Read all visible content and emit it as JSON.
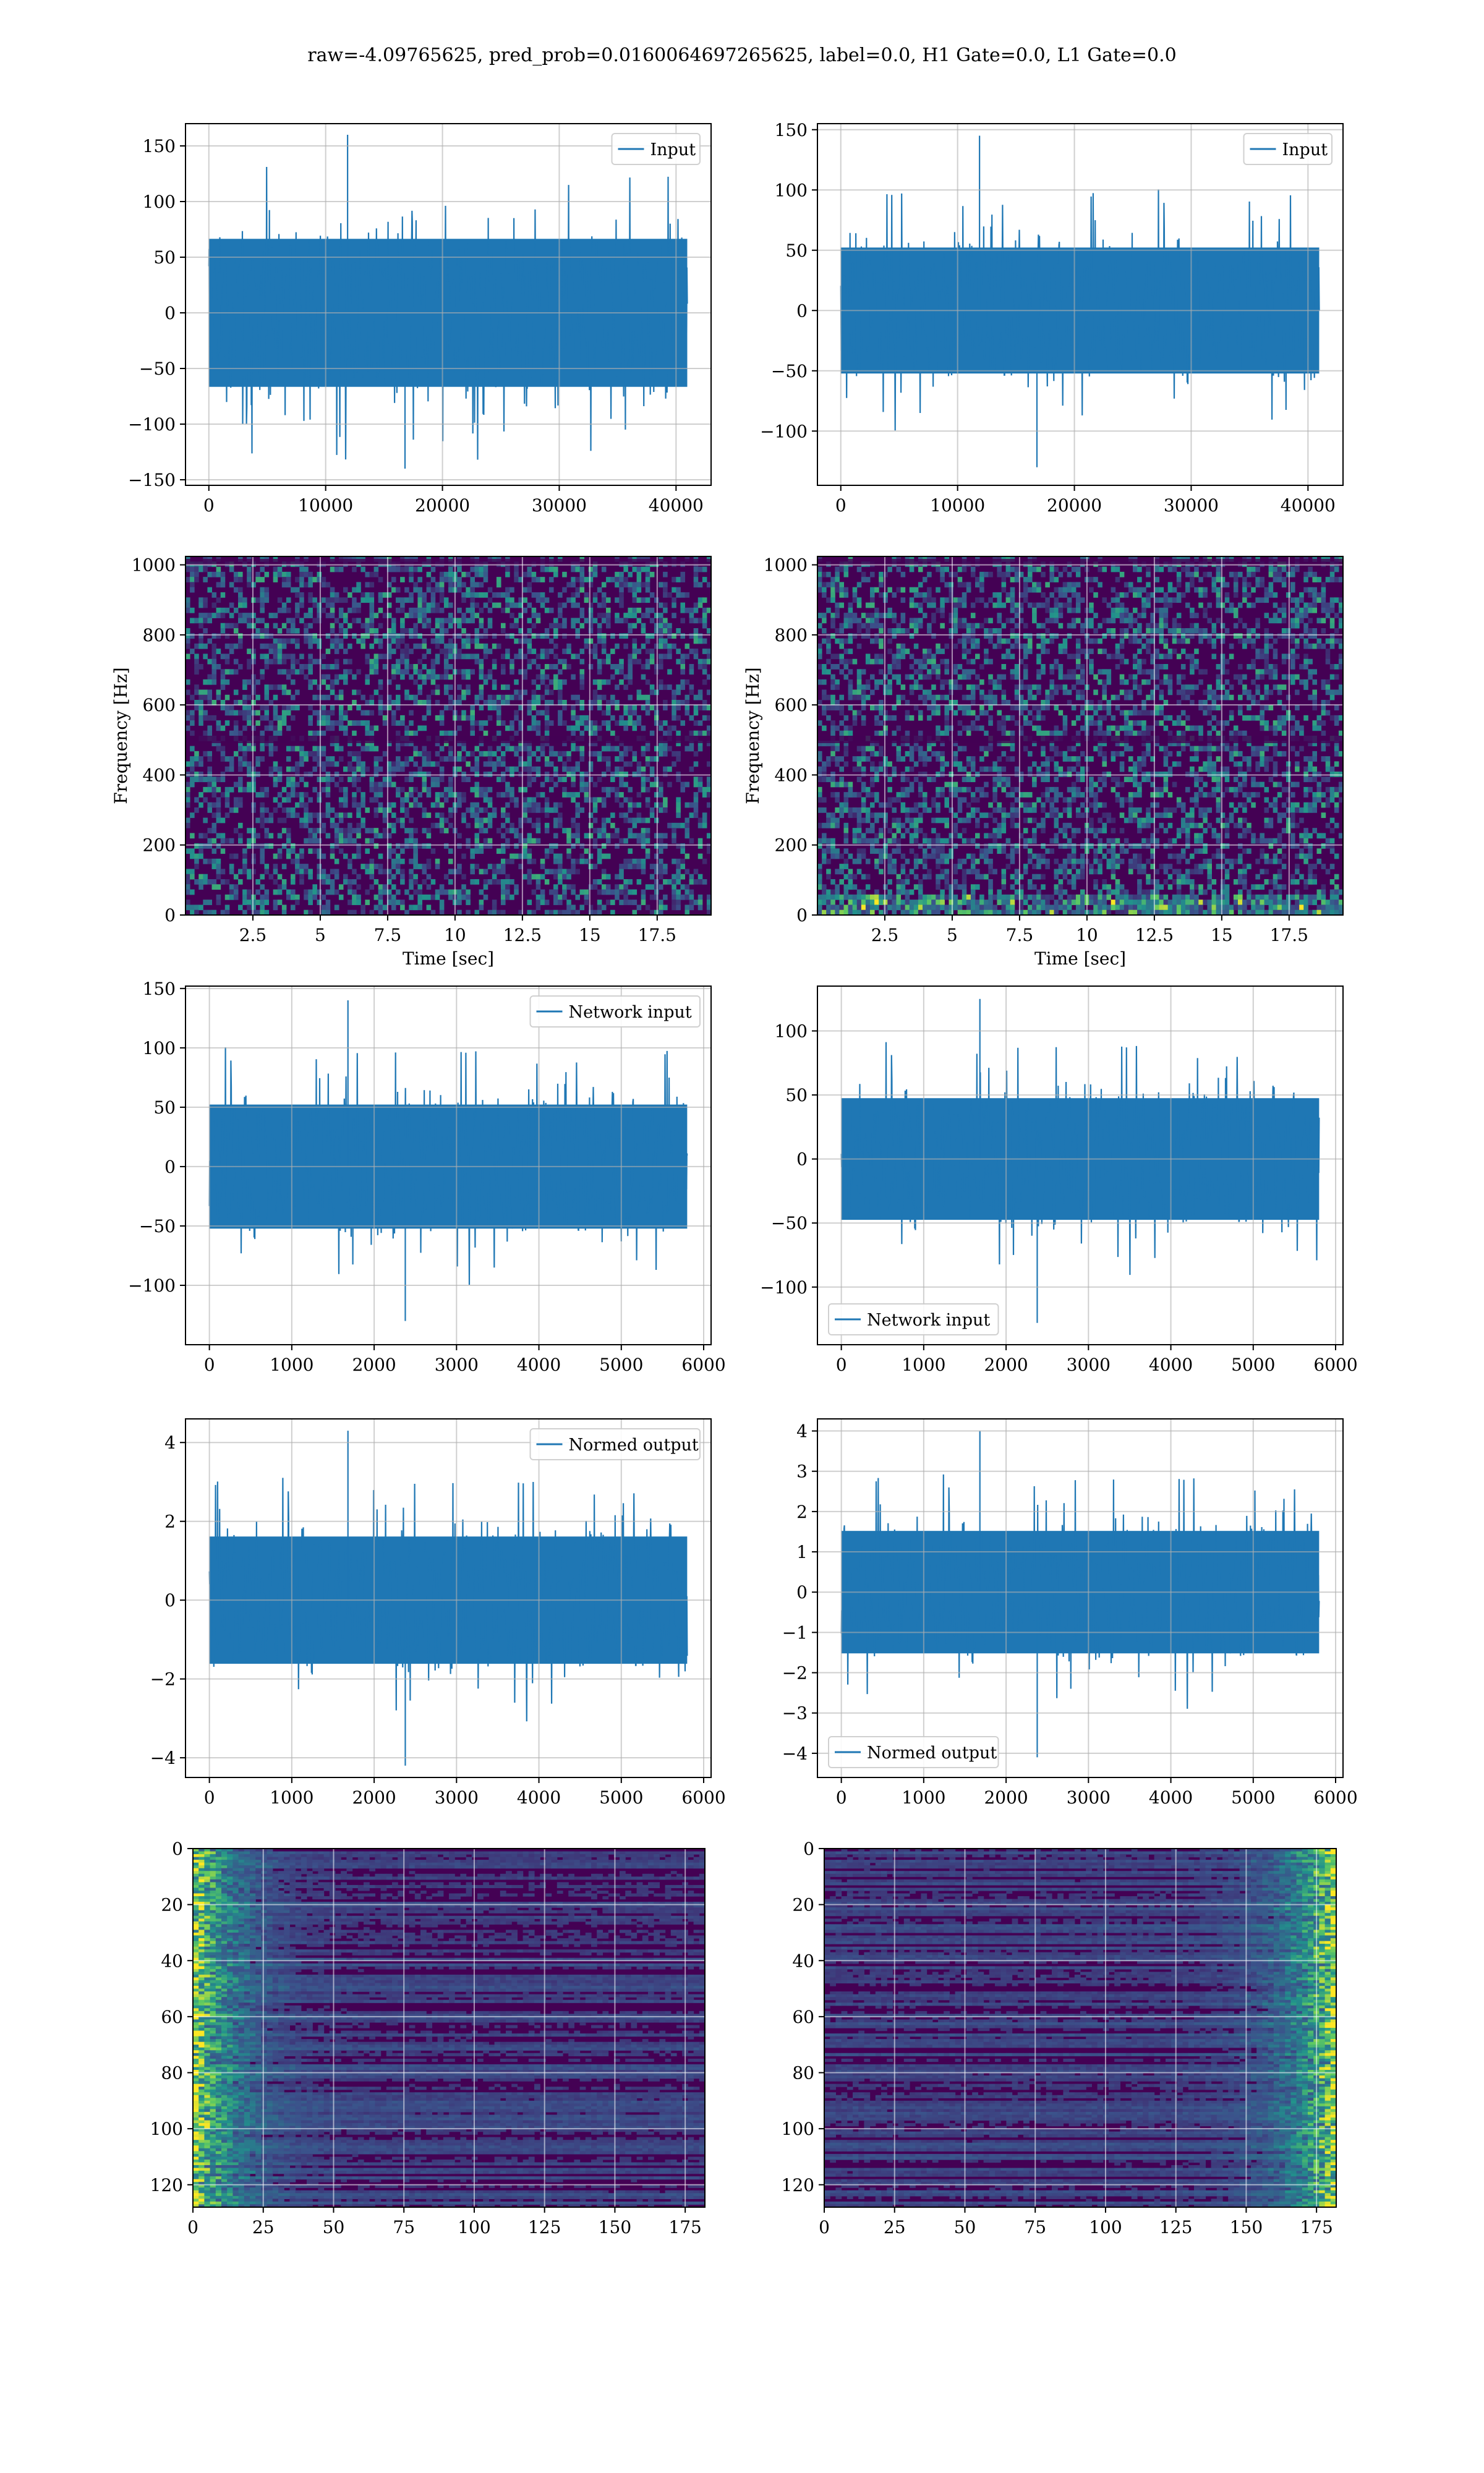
{
  "suptitle": "raw=-4.09765625, pred_prob=0.0160064697265625, label=0.0, H1 Gate=0.0, L1 Gate=0.0",
  "colors": {
    "line": "#1f77b4",
    "grid": "#b0b0b0",
    "viridis_dark": "#440154",
    "viridis_mid": "#21918c",
    "viridis_bright": "#fde725"
  },
  "chart_data": [
    {
      "id": "input-h1",
      "type": "line",
      "legend": [
        "Input"
      ],
      "legend_loc": "upper right",
      "xlim": [
        -2000,
        43000
      ],
      "ylim": [
        -155,
        170
      ],
      "xticks": [
        0,
        10000,
        20000,
        30000,
        40000
      ],
      "yticks": [
        -150,
        -100,
        -50,
        0,
        50,
        100,
        150
      ],
      "series": [
        {
          "name": "Input",
          "x_range": [
            0,
            40960
          ],
          "typical_abs": 70,
          "min": -140,
          "max": 160
        }
      ],
      "xlabel": "",
      "ylabel": "",
      "grid": true
    },
    {
      "id": "input-l1",
      "type": "line",
      "legend": [
        "Input"
      ],
      "legend_loc": "upper right",
      "xlim": [
        -2000,
        43000
      ],
      "ylim": [
        -145,
        155
      ],
      "xticks": [
        0,
        10000,
        20000,
        30000,
        40000
      ],
      "yticks": [
        -100,
        -50,
        0,
        50,
        100,
        150
      ],
      "series": [
        {
          "name": "Input",
          "x_range": [
            0,
            40960
          ],
          "typical_abs": 55,
          "min": -130,
          "max": 145
        }
      ],
      "xlabel": "",
      "ylabel": "",
      "grid": true
    },
    {
      "id": "spectrogram-h1",
      "type": "heatmap",
      "xlabel": "Time [sec]",
      "ylabel": "Frequency [Hz]",
      "xlim": [
        0,
        19.5
      ],
      "ylim": [
        0,
        1024
      ],
      "xticks": [
        2.5,
        5.0,
        7.5,
        10.0,
        12.5,
        15.0,
        17.5
      ],
      "yticks": [
        0,
        200,
        400,
        600,
        800,
        1000
      ],
      "colormap": "viridis",
      "grid": true
    },
    {
      "id": "spectrogram-l1",
      "type": "heatmap",
      "xlabel": "Time [sec]",
      "ylabel": "Frequency [Hz]",
      "xlim": [
        0,
        19.5
      ],
      "ylim": [
        0,
        1024
      ],
      "xticks": [
        2.5,
        5.0,
        7.5,
        10.0,
        12.5,
        15.0,
        17.5
      ],
      "yticks": [
        0,
        200,
        400,
        600,
        800,
        1000
      ],
      "colormap": "viridis",
      "grid": true
    },
    {
      "id": "network-input-h1",
      "type": "line",
      "legend": [
        "Network input"
      ],
      "legend_loc": "upper right",
      "xlim": [
        -290,
        6090
      ],
      "ylim": [
        -150,
        152
      ],
      "xticks": [
        0,
        1000,
        2000,
        3000,
        4000,
        5000,
        6000
      ],
      "yticks": [
        -100,
        -50,
        0,
        50,
        100,
        150
      ],
      "series": [
        {
          "name": "Network input",
          "x_range": [
            0,
            5800
          ],
          "typical_abs": 55,
          "min": -130,
          "max": 140
        }
      ],
      "xlabel": "",
      "ylabel": "",
      "grid": true
    },
    {
      "id": "network-input-l1",
      "type": "line",
      "legend": [
        "Network input"
      ],
      "legend_loc": "lower left",
      "xlim": [
        -290,
        6090
      ],
      "ylim": [
        -145,
        135
      ],
      "xticks": [
        0,
        1000,
        2000,
        3000,
        4000,
        5000,
        6000
      ],
      "yticks": [
        -100,
        -50,
        0,
        50,
        100
      ],
      "series": [
        {
          "name": "Network input",
          "x_range": [
            0,
            5800
          ],
          "typical_abs": 50,
          "min": -128,
          "max": 125
        }
      ],
      "xlabel": "",
      "ylabel": "",
      "grid": true
    },
    {
      "id": "normed-output-h1",
      "type": "line",
      "legend": [
        "Normed output"
      ],
      "legend_loc": "upper right",
      "xlim": [
        -290,
        6090
      ],
      "ylim": [
        -4.5,
        4.6
      ],
      "xticks": [
        0,
        1000,
        2000,
        3000,
        4000,
        5000,
        6000
      ],
      "yticks": [
        -4,
        -2,
        0,
        2,
        4
      ],
      "series": [
        {
          "name": "Normed output",
          "x_range": [
            0,
            5800
          ],
          "typical_abs": 1.7,
          "min": -4.2,
          "max": 4.3
        }
      ],
      "xlabel": "",
      "ylabel": "",
      "grid": true
    },
    {
      "id": "normed-output-l1",
      "type": "line",
      "legend": [
        "Normed output"
      ],
      "legend_loc": "lower left",
      "xlim": [
        -290,
        6090
      ],
      "ylim": [
        -4.6,
        4.3
      ],
      "xticks": [
        0,
        1000,
        2000,
        3000,
        4000,
        5000,
        6000
      ],
      "yticks": [
        -4,
        -3,
        -2,
        -1,
        0,
        1,
        2,
        3,
        4
      ],
      "series": [
        {
          "name": "Normed output",
          "x_range": [
            0,
            5800
          ],
          "typical_abs": 1.6,
          "min": -4.1,
          "max": 4.0
        }
      ],
      "xlabel": "",
      "ylabel": "",
      "grid": true
    },
    {
      "id": "features-h1",
      "type": "heatmap",
      "xlim": [
        0,
        182
      ],
      "ylim": [
        128,
        0
      ],
      "xticks": [
        0,
        25,
        50,
        75,
        100,
        125,
        150,
        175
      ],
      "yticks": [
        0,
        20,
        40,
        60,
        80,
        100,
        120
      ],
      "colormap": "viridis",
      "bright_region": "left",
      "grid": true
    },
    {
      "id": "features-l1",
      "type": "heatmap",
      "xlim": [
        0,
        182
      ],
      "ylim": [
        128,
        0
      ],
      "xticks": [
        0,
        25,
        50,
        75,
        100,
        125,
        150,
        175
      ],
      "yticks": [
        0,
        20,
        40,
        60,
        80,
        100,
        120
      ],
      "colormap": "viridis",
      "bright_region": "right",
      "grid": true
    }
  ]
}
